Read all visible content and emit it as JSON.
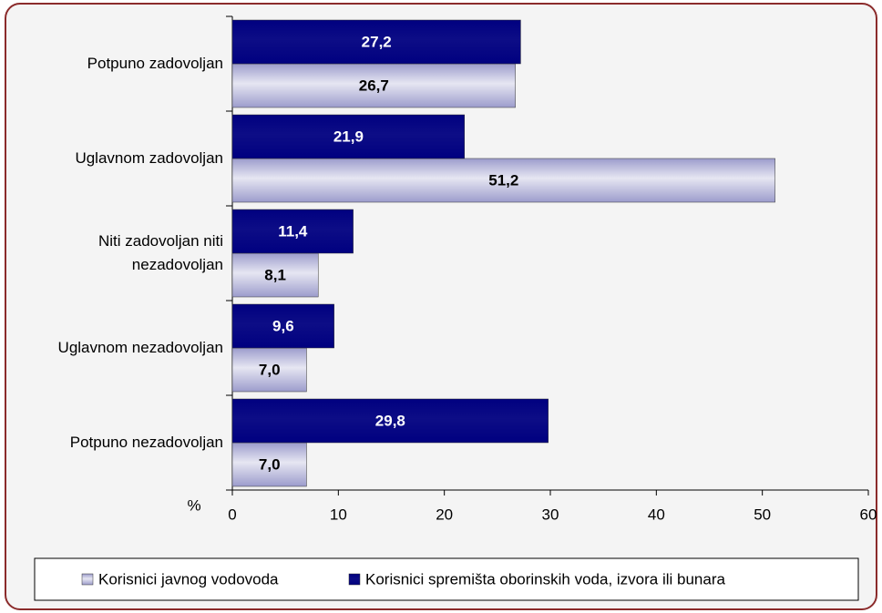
{
  "chart_data": {
    "type": "bar",
    "orientation": "horizontal",
    "categories": [
      "Potpuno zadovoljan",
      "Uglavnom zadovoljan",
      "Niti zadovoljan niti nezadovoljan",
      "Uglavnom nezadovoljan",
      "Potpuno nezadovoljan"
    ],
    "series": [
      {
        "name": "Korisnici javnog vodovoda",
        "color": "#9c9ccc",
        "values": [
          26.7,
          51.2,
          8.1,
          7.0,
          7.0
        ],
        "value_labels": [
          "26,7",
          "51,2",
          "8,1",
          "7,0",
          "7,0"
        ]
      },
      {
        "name": "Korisnici spremišta oborinskih voda, izvora ili bunara",
        "color": "#000080",
        "values": [
          27.2,
          21.9,
          11.4,
          9.6,
          29.8
        ],
        "value_labels": [
          "27,2",
          "21,9",
          "11,4",
          "9,6",
          "29,8"
        ]
      }
    ],
    "xlabel": "%",
    "xlim": [
      0,
      60
    ],
    "xticks": [
      0,
      10,
      20,
      30,
      40,
      50,
      60
    ],
    "legend": "bottom"
  }
}
